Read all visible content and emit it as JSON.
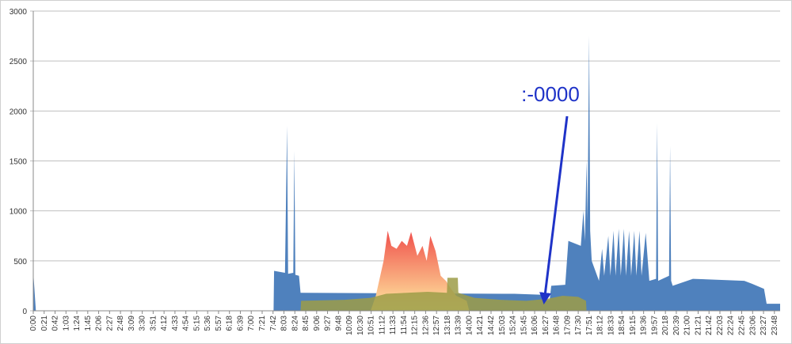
{
  "chart_data": {
    "type": "area",
    "annotation": ":-0000",
    "xlim": [
      0,
      1439
    ],
    "ylim": [
      0,
      3000
    ],
    "yticks": [
      0,
      500,
      1000,
      1500,
      2000,
      2500,
      3000
    ],
    "grid": true,
    "xticks": [
      {
        "value": 0,
        "label": "0:00"
      },
      {
        "value": 21,
        "label": "0:21"
      },
      {
        "value": 42,
        "label": "0:42"
      },
      {
        "value": 63,
        "label": "1:03"
      },
      {
        "value": 84,
        "label": "1:24"
      },
      {
        "value": 105,
        "label": "1:45"
      },
      {
        "value": 126,
        "label": "2:06"
      },
      {
        "value": 147,
        "label": "2:27"
      },
      {
        "value": 168,
        "label": "2:48"
      },
      {
        "value": 189,
        "label": "3:09"
      },
      {
        "value": 210,
        "label": "3:30"
      },
      {
        "value": 231,
        "label": "3:51"
      },
      {
        "value": 252,
        "label": "4:12"
      },
      {
        "value": 273,
        "label": "4:33"
      },
      {
        "value": 294,
        "label": "4:54"
      },
      {
        "value": 315,
        "label": "5:15"
      },
      {
        "value": 336,
        "label": "5:36"
      },
      {
        "value": 357,
        "label": "5:57"
      },
      {
        "value": 378,
        "label": "6:18"
      },
      {
        "value": 399,
        "label": "6:39"
      },
      {
        "value": 420,
        "label": "7:00"
      },
      {
        "value": 441,
        "label": "7:21"
      },
      {
        "value": 462,
        "label": "7:42"
      },
      {
        "value": 483,
        "label": "8:03"
      },
      {
        "value": 504,
        "label": "8:24"
      },
      {
        "value": 525,
        "label": "8:45"
      },
      {
        "value": 546,
        "label": "9:06"
      },
      {
        "value": 567,
        "label": "9:27"
      },
      {
        "value": 588,
        "label": "9:48"
      },
      {
        "value": 609,
        "label": "10:09"
      },
      {
        "value": 630,
        "label": "10:30"
      },
      {
        "value": 651,
        "label": "10:51"
      },
      {
        "value": 672,
        "label": "11:12"
      },
      {
        "value": 693,
        "label": "11:33"
      },
      {
        "value": 714,
        "label": "11:54"
      },
      {
        "value": 735,
        "label": "12:15"
      },
      {
        "value": 756,
        "label": "12:36"
      },
      {
        "value": 777,
        "label": "12:57"
      },
      {
        "value": 798,
        "label": "13:18"
      },
      {
        "value": 819,
        "label": "13:39"
      },
      {
        "value": 840,
        "label": "14:00"
      },
      {
        "value": 861,
        "label": "14:21"
      },
      {
        "value": 882,
        "label": "14:42"
      },
      {
        "value": 903,
        "label": "15:03"
      },
      {
        "value": 924,
        "label": "15:24"
      },
      {
        "value": 945,
        "label": "15:45"
      },
      {
        "value": 966,
        "label": "16:06"
      },
      {
        "value": 987,
        "label": "16:27"
      },
      {
        "value": 1008,
        "label": "16:48"
      },
      {
        "value": 1029,
        "label": "17:09"
      },
      {
        "value": 1050,
        "label": "17:30"
      },
      {
        "value": 1071,
        "label": "17:51"
      },
      {
        "value": 1092,
        "label": "18:12"
      },
      {
        "value": 1113,
        "label": "18:33"
      },
      {
        "value": 1134,
        "label": "18:54"
      },
      {
        "value": 1155,
        "label": "19:15"
      },
      {
        "value": 1176,
        "label": "19:36"
      },
      {
        "value": 1197,
        "label": "19:57"
      },
      {
        "value": 1218,
        "label": "20:18"
      },
      {
        "value": 1239,
        "label": "20:39"
      },
      {
        "value": 1260,
        "label": "21:00"
      },
      {
        "value": 1281,
        "label": "21:21"
      },
      {
        "value": 1302,
        "label": "21:42"
      },
      {
        "value": 1323,
        "label": "22:03"
      },
      {
        "value": 1344,
        "label": "22:24"
      },
      {
        "value": 1365,
        "label": "22:45"
      },
      {
        "value": 1386,
        "label": "23:06"
      },
      {
        "value": 1407,
        "label": "23:27"
      },
      {
        "value": 1428,
        "label": "23:48"
      }
    ],
    "series": [
      {
        "color": "#4f81bd",
        "x": [
          0,
          5,
          463,
          464,
          485,
          489,
          491,
          501,
          503,
          505,
          512,
          515,
          700,
          927,
          981,
          983,
          995,
          998,
          1025,
          1031,
          1055,
          1060,
          1063,
          1066,
          1068,
          1071,
          1073,
          1076,
          1090,
          1096,
          1100,
          1108,
          1112,
          1118,
          1122,
          1128,
          1132,
          1138,
          1142,
          1148,
          1152,
          1158,
          1162,
          1168,
          1172,
          1180,
          1187,
          1200,
          1202,
          1204,
          1225,
          1227,
          1229,
          1232,
          1271,
          1370,
          1385,
          1408,
          1413,
          1439
        ],
        "values": [
          390,
          0,
          0,
          400,
          380,
          1850,
          370,
          380,
          1600,
          360,
          350,
          180,
          175,
          170,
          160,
          100,
          110,
          250,
          260,
          700,
          650,
          1000,
          700,
          1500,
          900,
          2750,
          800,
          500,
          300,
          620,
          350,
          750,
          350,
          800,
          350,
          820,
          350,
          820,
          350,
          800,
          350,
          800,
          350,
          800,
          350,
          780,
          300,
          320,
          1880,
          300,
          350,
          1650,
          300,
          250,
          320,
          300,
          270,
          220,
          70,
          70
        ]
      },
      {
        "color": "#f26a5a",
        "gradient": [
          "#f0504c",
          "#ffe9a0"
        ],
        "x": [
          650,
          660,
          675,
          683,
          690,
          700,
          710,
          720,
          728,
          740,
          750,
          758,
          765,
          775,
          785,
          795,
          805,
          815,
          835,
          840
        ],
        "values": [
          0,
          150,
          500,
          800,
          650,
          620,
          700,
          650,
          790,
          550,
          650,
          500,
          750,
          600,
          350,
          300,
          220,
          150,
          100,
          0
        ]
      },
      {
        "color": "#9c9c48",
        "x": [
          515,
          516,
          600,
          650,
          680,
          720,
          760,
          797,
          798,
          818,
          819,
          850,
          900,
          950,
          990,
          1020,
          1050,
          1065,
          1066
        ],
        "values": [
          0,
          100,
          110,
          130,
          170,
          180,
          190,
          180,
          330,
          330,
          180,
          130,
          110,
          100,
          120,
          150,
          140,
          100,
          0
        ]
      }
    ]
  }
}
